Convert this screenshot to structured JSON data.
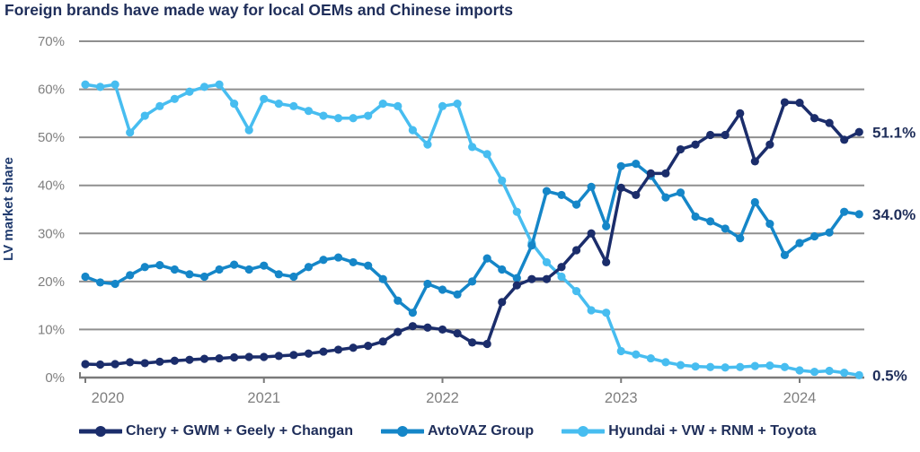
{
  "page": {
    "background": "#ffffff"
  },
  "chart_data": {
    "type": "line",
    "title": "Foreign brands have made way for local OEMs and Chinese imports",
    "ylabel": "LV market share",
    "x_start": "2020-01",
    "x_end": "2024-05",
    "x_frequency": "monthly",
    "x_tick_labels": [
      "2020",
      "2021",
      "2022",
      "2023",
      "2024"
    ],
    "y_tick_labels": [
      "0%",
      "10%",
      "20%",
      "30%",
      "40%",
      "50%",
      "60%",
      "70%"
    ],
    "ylim": [
      0,
      70
    ],
    "grid": true,
    "legend_position": "bottom",
    "colors": {
      "grid_gray": "#8f8f8f",
      "axis_gray": "#7a7a7a",
      "tick_text_gray": "#7f7f7f",
      "navy_text": "#1f2e5a"
    },
    "series": [
      {
        "name": "Chery + GWM + Geely + Changan",
        "color": "#1b2d6b",
        "end_label": "51.1%",
        "values": [
          2.8,
          2.7,
          2.8,
          3.2,
          3.0,
          3.3,
          3.5,
          3.7,
          3.9,
          4.0,
          4.2,
          4.3,
          4.3,
          4.5,
          4.7,
          5.0,
          5.4,
          5.8,
          6.2,
          6.6,
          7.5,
          9.5,
          10.7,
          10.4,
          10.0,
          9.2,
          7.3,
          7.0,
          15.7,
          19.2,
          20.5,
          20.5,
          23.0,
          26.5,
          30.0,
          24.0,
          39.5,
          38.0,
          42.5,
          42.5,
          47.5,
          48.5,
          50.5,
          50.5,
          55.0,
          45.0,
          48.5,
          57.3,
          57.2,
          54.0,
          53.0,
          49.5,
          51.1
        ]
      },
      {
        "name": "AvtoVAZ Group",
        "color": "#1586c8",
        "end_label": "34.0%",
        "values": [
          21.0,
          19.8,
          19.5,
          21.3,
          23.0,
          23.4,
          22.5,
          21.5,
          21.0,
          22.5,
          23.5,
          22.5,
          23.3,
          21.5,
          21.0,
          23.0,
          24.5,
          25.0,
          24.0,
          23.3,
          20.5,
          16.0,
          13.5,
          19.5,
          18.3,
          17.3,
          20.0,
          24.8,
          22.5,
          20.7,
          27.5,
          38.8,
          38.0,
          36.0,
          39.7,
          31.5,
          44.0,
          44.5,
          42.0,
          37.5,
          38.5,
          33.5,
          32.5,
          31.0,
          29.0,
          36.5,
          32.0,
          25.5,
          28.0,
          29.4,
          30.2,
          34.5,
          34.0
        ]
      },
      {
        "name": "Hyundai + VW + RNM + Toyota",
        "color": "#47bdf0",
        "end_label": "0.5%",
        "values": [
          61.0,
          60.5,
          61.0,
          51.0,
          54.5,
          56.5,
          58.0,
          59.5,
          60.5,
          61.0,
          57.0,
          51.5,
          58.0,
          57.0,
          56.5,
          55.5,
          54.5,
          54.0,
          54.0,
          54.5,
          57.0,
          56.5,
          51.5,
          48.5,
          56.5,
          57.0,
          48.0,
          46.5,
          41.0,
          34.5,
          28.0,
          24.0,
          21.0,
          18.0,
          14.0,
          13.5,
          5.5,
          4.8,
          4.0,
          3.2,
          2.6,
          2.3,
          2.2,
          2.1,
          2.2,
          2.4,
          2.5,
          2.2,
          1.5,
          1.2,
          1.4,
          1.0,
          0.5
        ]
      }
    ]
  }
}
